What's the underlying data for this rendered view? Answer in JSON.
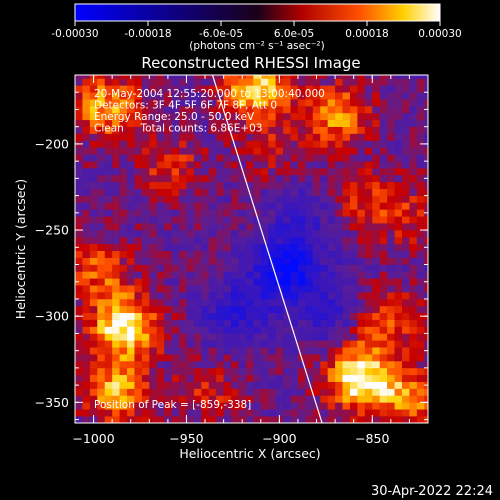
{
  "chart_data": {
    "type": "heatmap",
    "title": "Reconstructed RHESSI Image",
    "xlabel": "Heliocentric X (arcsec)",
    "ylabel": "Heliocentric Y (arcsec)",
    "xlim": [
      -1010,
      -820
    ],
    "ylim": [
      -362,
      -160
    ],
    "x_ticks": [
      -1000,
      -950,
      -900,
      -850
    ],
    "x_tick_labels": [
      "−1000",
      "−950",
      "−900",
      "−850"
    ],
    "y_ticks": [
      -200,
      -250,
      -300,
      -350
    ],
    "y_tick_labels": [
      "−200",
      "−250",
      "−300",
      "−350"
    ],
    "colorbar": {
      "range": [
        -0.0003,
        0.0003
      ],
      "tick_labels": [
        "-0.00030",
        "-0.00018",
        "-6.0e-05",
        "6.0e-05",
        "0.00018",
        "0.00030"
      ],
      "unit_label": "(photons cm⁻² s⁻¹ asec⁻²)"
    },
    "annotations": [
      "20-May-2004 12:55:20.000 to 13:00:40.000",
      "Detectors: 3F 4F 5F 6F 7F 8F, Att 0",
      "Energy Range: 25.0 - 50.0 keV",
      "Clean     Total counts: 6.86E+03"
    ],
    "peak_label": "Position of Peak = [-859,-338]",
    "hot_spots": [
      {
        "x": -985,
        "y": -308,
        "value": 0.0003
      },
      {
        "x": -1000,
        "y": -275,
        "value": 0.00015
      },
      {
        "x": -990,
        "y": -345,
        "value": 0.00022
      },
      {
        "x": -859,
        "y": -338,
        "value": 0.0003
      },
      {
        "x": -845,
        "y": -305,
        "value": 0.00016
      },
      {
        "x": -832,
        "y": -350,
        "value": 0.00018
      },
      {
        "x": -915,
        "y": -170,
        "value": 0.00026
      },
      {
        "x": -870,
        "y": -185,
        "value": 0.0002
      },
      {
        "x": -995,
        "y": -180,
        "value": 0.00022
      },
      {
        "x": -960,
        "y": -215,
        "value": 0.00012
      },
      {
        "x": -855,
        "y": -235,
        "value": 0.00012
      },
      {
        "x": -940,
        "y": -345,
        "value": 0.0001
      },
      {
        "x": -905,
        "y": -205,
        "value": 8e-05
      },
      {
        "x": -830,
        "y": -245,
        "value": 9e-05
      }
    ],
    "cold_spots": [
      {
        "x": -898,
        "y": -275,
        "value": -0.00028
      },
      {
        "x": -925,
        "y": -300,
        "value": -0.00015
      },
      {
        "x": -875,
        "y": -300,
        "value": -0.00012
      },
      {
        "x": -890,
        "y": -245,
        "value": -0.0001
      }
    ],
    "limb_line": [
      [
        -936,
        -160
      ],
      [
        -877,
        -362
      ]
    ]
  },
  "footer": {
    "timestamp": "30-Apr-2022 22:24"
  }
}
